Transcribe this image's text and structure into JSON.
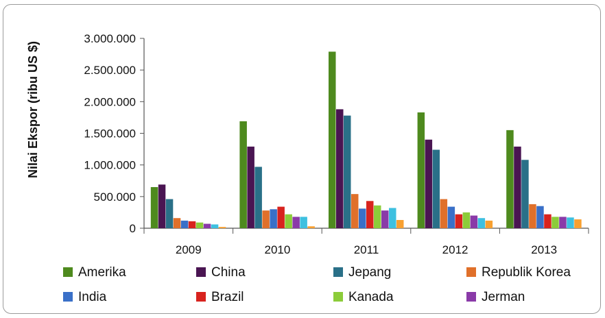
{
  "chart_data": {
    "type": "bar",
    "title": "",
    "xlabel": "",
    "ylabel": "Nilai Ekspor (ribu US $)",
    "ylim": [
      0,
      3000000
    ],
    "yticks": [
      0,
      500000,
      1000000,
      1500000,
      2000000,
      2500000,
      3000000
    ],
    "ytick_labels": [
      "0",
      "500.000",
      "1.000.000",
      "1.500.000",
      "2.000.000",
      "2.500.000",
      "3.000.000"
    ],
    "categories": [
      "2009",
      "2010",
      "2011",
      "2012",
      "2013"
    ],
    "grid": false,
    "legend_position": "bottom",
    "series": [
      {
        "name": "Amerika",
        "color": "#4e8a1e",
        "values": [
          650000,
          1690000,
          2790000,
          1830000,
          1550000
        ]
      },
      {
        "name": "China",
        "color": "#4a1552",
        "values": [
          690000,
          1290000,
          1880000,
          1400000,
          1290000
        ]
      },
      {
        "name": "Jepang",
        "color": "#2a7088",
        "values": [
          460000,
          970000,
          1780000,
          1240000,
          1080000
        ]
      },
      {
        "name": "Republik Korea",
        "color": "#e0702a",
        "values": [
          160000,
          280000,
          540000,
          460000,
          380000
        ]
      },
      {
        "name": "India",
        "color": "#3a70c8",
        "values": [
          120000,
          300000,
          310000,
          340000,
          350000
        ]
      },
      {
        "name": "Brazil",
        "color": "#d8231e",
        "values": [
          110000,
          340000,
          430000,
          220000,
          220000
        ]
      },
      {
        "name": "Kanada",
        "color": "#8ccc3a",
        "values": [
          90000,
          220000,
          360000,
          250000,
          180000
        ]
      },
      {
        "name": "Jerman",
        "color": "#8a3aa8",
        "values": [
          70000,
          180000,
          280000,
          200000,
          180000
        ]
      },
      {
        "name": "",
        "color": "#3ec0e0",
        "values": [
          60000,
          180000,
          320000,
          160000,
          170000
        ]
      },
      {
        "name": "",
        "color": "#f8a030",
        "values": [
          20000,
          30000,
          130000,
          120000,
          140000
        ]
      }
    ]
  }
}
